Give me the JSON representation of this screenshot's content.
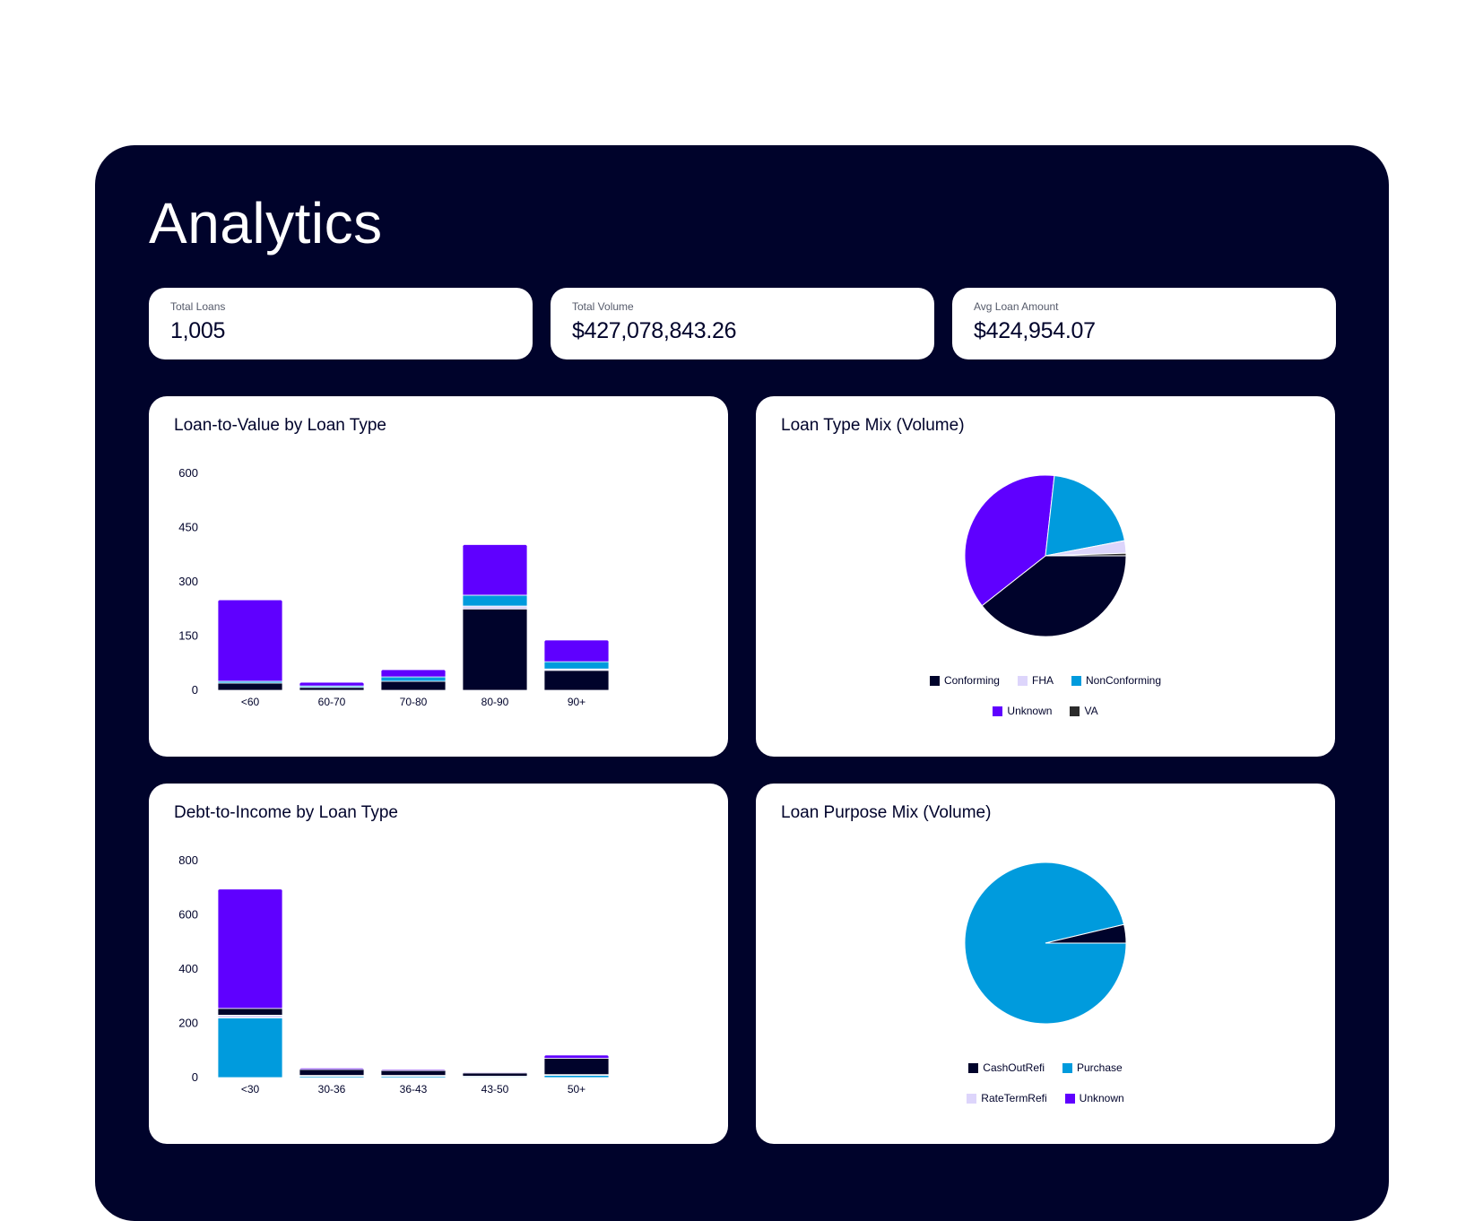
{
  "page": {
    "title": "Analytics"
  },
  "kpis": [
    {
      "label": "Total Loans",
      "value": "1,005"
    },
    {
      "label": "Total Volume",
      "value": "$427,078,843.26"
    },
    {
      "label": "Avg Loan Amount",
      "value": "$424,954.07"
    }
  ],
  "colors": {
    "Conforming": "#00032b",
    "FHA": "#ddd5fb",
    "NonConforming": "#009bdd",
    "Unknown": "#5f00ff",
    "VA": "#2b2b2b",
    "CashOutRefi": "#00032b",
    "Purchase": "#009bdd",
    "RateTermRefi": "#ddd5fb"
  },
  "cards": {
    "ltv": {
      "title": "Loan-to-Value by Loan Type"
    },
    "loan_type_mix": {
      "title": "Loan Type Mix (Volume)"
    },
    "dti": {
      "title": "Debt-to-Income by Loan Type"
    },
    "loan_purpose_mix": {
      "title": "Loan Purpose Mix (Volume)"
    }
  },
  "chart_data": [
    {
      "id": "ltv",
      "type": "bar",
      "stacked": true,
      "title": "Loan-to-Value by Loan Type",
      "categories": [
        "<60",
        "60-70",
        "70-80",
        "80-90",
        "90+"
      ],
      "ylim": [
        0,
        600
      ],
      "yticks": [
        0,
        150,
        300,
        450,
        600
      ],
      "series": [
        {
          "name": "Conforming",
          "values": [
            20,
            8,
            25,
            225,
            55
          ]
        },
        {
          "name": "FHA",
          "values": [
            0,
            0,
            0,
            8,
            4
          ]
        },
        {
          "name": "NonConforming",
          "values": [
            5,
            4,
            12,
            30,
            20
          ]
        },
        {
          "name": "Unknown",
          "values": [
            225,
            10,
            20,
            140,
            60
          ]
        }
      ]
    },
    {
      "id": "loan_type_mix",
      "type": "pie",
      "title": "Loan Type Mix (Volume)",
      "labels": [
        "Conforming",
        "Unknown",
        "NonConforming",
        "FHA",
        "VA"
      ],
      "values": [
        39,
        37,
        20,
        2.5,
        0.5
      ],
      "legend": [
        "Conforming",
        "FHA",
        "NonConforming",
        "Unknown",
        "VA"
      ]
    },
    {
      "id": "dti",
      "type": "bar",
      "stacked": true,
      "title": "Debt-to-Income by Loan Type",
      "categories": [
        "<30",
        "30-36",
        "36-43",
        "43-50",
        "50+"
      ],
      "ylim": [
        0,
        800
      ],
      "yticks": [
        0,
        200,
        400,
        600,
        800
      ],
      "series": [
        {
          "name": "NonConforming",
          "values": [
            220,
            5,
            5,
            3,
            8
          ]
        },
        {
          "name": "FHA",
          "values": [
            10,
            3,
            3,
            2,
            3
          ]
        },
        {
          "name": "Conforming",
          "values": [
            25,
            22,
            18,
            12,
            60
          ]
        },
        {
          "name": "Unknown",
          "values": [
            440,
            5,
            4,
            3,
            12
          ]
        }
      ]
    },
    {
      "id": "loan_purpose_mix",
      "type": "pie",
      "title": "Loan Purpose Mix (Volume)",
      "labels": [
        "Purchase",
        "CashOutRefi",
        "RateTermRefi",
        "Unknown"
      ],
      "values": [
        96.3,
        3.7,
        0,
        0
      ],
      "legend": [
        "CashOutRefi",
        "Purchase",
        "RateTermRefi",
        "Unknown"
      ]
    }
  ]
}
